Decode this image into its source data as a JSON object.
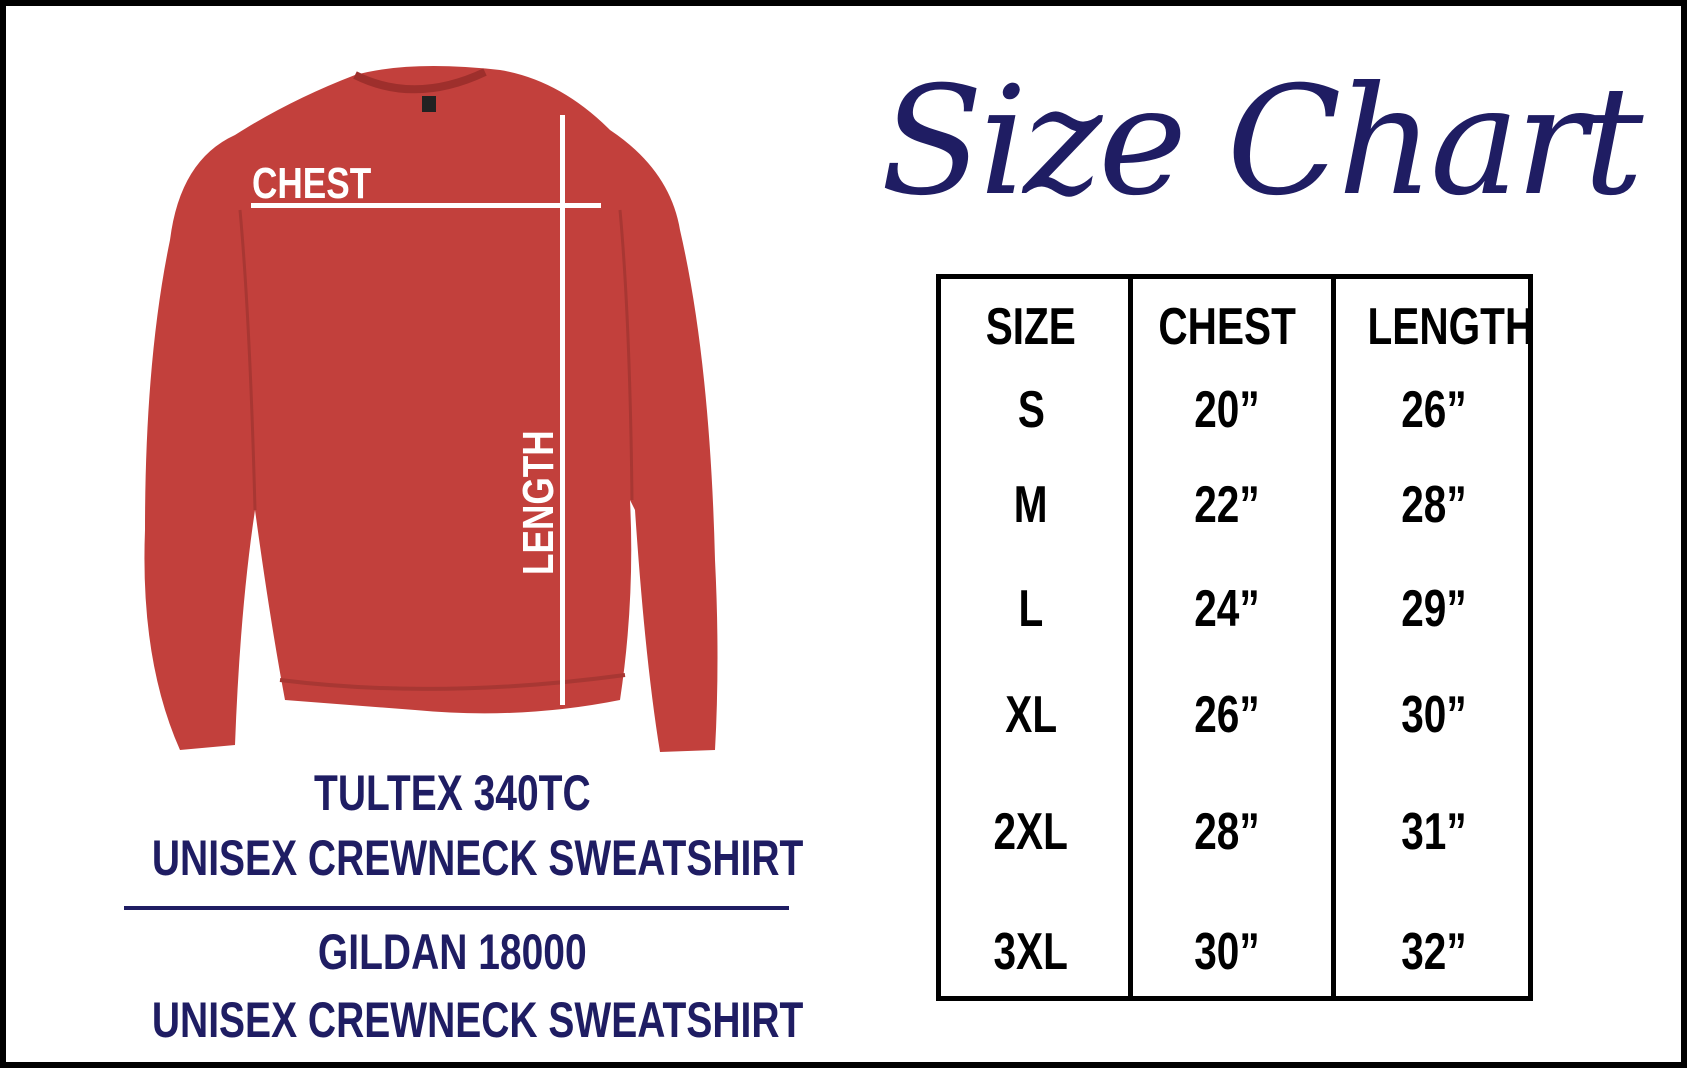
{
  "title": "Size Chart",
  "image": {
    "chest_label": "CHEST",
    "length_label": "LENGTH",
    "garment_color": "#c2403c"
  },
  "products": [
    {
      "model": "TULTEX 340TC",
      "description": "UNISEX CREWNECK SWEATSHIRT"
    },
    {
      "model": "GILDAN 18000",
      "description": "UNISEX CREWNECK SWEATSHIRT"
    }
  ],
  "table": {
    "headers": [
      "SIZE",
      "CHEST",
      "LENGTH"
    ],
    "rows": [
      [
        "S",
        "20”",
        "26”"
      ],
      [
        "M",
        "22”",
        "28”"
      ],
      [
        "L",
        "24”",
        "29”"
      ],
      [
        "XL",
        "26”",
        "30”"
      ],
      [
        "2XL",
        "28”",
        "31”"
      ],
      [
        "3XL",
        "30”",
        "32”"
      ]
    ]
  },
  "colors": {
    "accent": "#1f1d63",
    "border": "#000000"
  }
}
